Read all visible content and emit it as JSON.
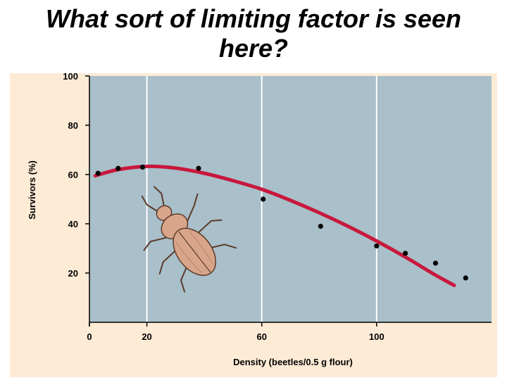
{
  "slide": {
    "title_line1": "What sort of limiting factor is seen",
    "title_line2": "here?"
  },
  "chart_data": {
    "type": "scatter",
    "title": "",
    "xlabel": "Density (beetles/0.5 g flour)",
    "ylabel": "Survivors (%)",
    "xlim": [
      0,
      140
    ],
    "ylim": [
      0,
      100
    ],
    "x_ticks": [
      0,
      20,
      60,
      100
    ],
    "y_ticks": [
      20,
      40,
      60,
      80,
      100
    ],
    "grid": true,
    "points": [
      {
        "x": 3,
        "y": 60.5
      },
      {
        "x": 10,
        "y": 62.5
      },
      {
        "x": 18.5,
        "y": 63
      },
      {
        "x": 38,
        "y": 62.5
      },
      {
        "x": 60.5,
        "y": 50
      },
      {
        "x": 80.5,
        "y": 39
      },
      {
        "x": 100,
        "y": 31
      },
      {
        "x": 110,
        "y": 28
      },
      {
        "x": 120.5,
        "y": 24
      },
      {
        "x": 131,
        "y": 18
      }
    ],
    "trend_curve": [
      {
        "x": 2,
        "y": 59.5
      },
      {
        "x": 10,
        "y": 62
      },
      {
        "x": 20,
        "y": 63.3
      },
      {
        "x": 30,
        "y": 62.6
      },
      {
        "x": 40,
        "y": 60.5
      },
      {
        "x": 50,
        "y": 57.5
      },
      {
        "x": 60,
        "y": 54
      },
      {
        "x": 70,
        "y": 49.5
      },
      {
        "x": 80,
        "y": 44.5
      },
      {
        "x": 90,
        "y": 39
      },
      {
        "x": 100,
        "y": 33
      },
      {
        "x": 110,
        "y": 26.5
      },
      {
        "x": 120,
        "y": 19.5
      },
      {
        "x": 127,
        "y": 15
      }
    ],
    "colors": {
      "plot_background": "#a9bfc9",
      "panel_background": "#fdebd6",
      "trend_line": "#c8183c",
      "points": "#000000",
      "grid": "#ffffff"
    }
  },
  "illustration": {
    "icon": "flour-beetle-icon"
  }
}
